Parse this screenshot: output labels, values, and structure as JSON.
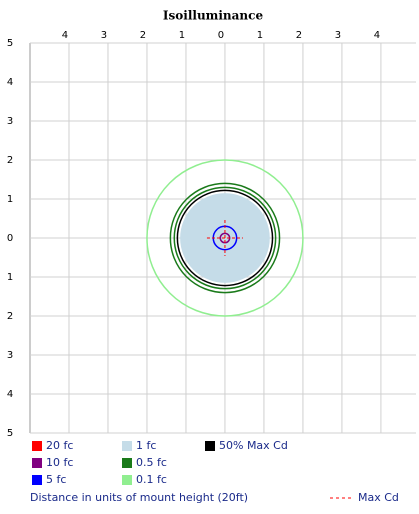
{
  "chart_data": {
    "type": "isoilluminance",
    "title": "Isoilluminance",
    "xlim": [
      -5,
      4.9
    ],
    "ylim": [
      -5,
      5
    ],
    "xticks": [
      {
        "value": -4,
        "label": "4"
      },
      {
        "value": -3,
        "label": "3"
      },
      {
        "value": -2,
        "label": "2"
      },
      {
        "value": -1,
        "label": "1"
      },
      0,
      1,
      2,
      3,
      4
    ],
    "yticks": [
      5,
      4,
      3,
      2,
      1,
      0,
      {
        "value": -1,
        "label": "1"
      },
      {
        "value": -2,
        "label": "2"
      },
      {
        "value": -3,
        "label": "3"
      },
      {
        "value": -4,
        "label": "4"
      },
      {
        "value": -5,
        "label": "5"
      }
    ],
    "grid": true,
    "series": [
      {
        "name": "20 fc",
        "color": "#ff0000",
        "values": [
          0.06
        ],
        "filled": true
      },
      {
        "name": "10 fc",
        "color": "#800080",
        "values": [
          0.12
        ]
      },
      {
        "name": "5 fc",
        "color": "#0000ff",
        "values": [
          0.3
        ]
      },
      {
        "name": "1 fc",
        "color": "#c5dce8",
        "values": [
          1.15
        ],
        "filled": true
      },
      {
        "name": "0.5 fc",
        "color": "#1a7a1a",
        "values": [
          1.3,
          1.4
        ]
      },
      {
        "name": "0.1 fc",
        "color": "#90ee90",
        "values": [
          2.0
        ]
      },
      {
        "name": "50% Max Cd",
        "color": "#000000",
        "values": [
          1.22
        ]
      }
    ],
    "max_cd": {
      "name": "Max Cd",
      "color": "#ff0000",
      "x": 0,
      "y": 0
    },
    "xlabel": "Distance in units of mount height (20ft)"
  }
}
